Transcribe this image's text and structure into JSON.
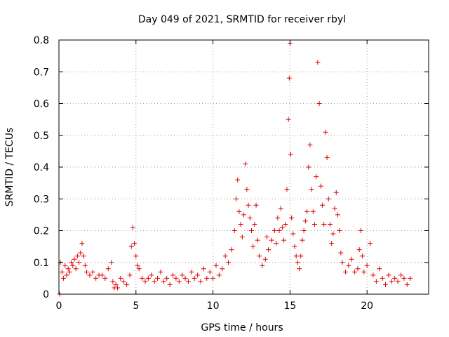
{
  "chart_data": {
    "type": "scatter",
    "title": "Day 049 of 2021, SRMTID for receiver rbyl",
    "xlabel": "GPS time / hours",
    "ylabel": "SRMTID / TECUs",
    "xlim": [
      0,
      24
    ],
    "ylim": [
      0,
      0.8
    ],
    "x_ticks": [
      0,
      5,
      10,
      15,
      20
    ],
    "x_tick_labels": [
      "0",
      "5",
      "10",
      "15",
      "20"
    ],
    "y_ticks": [
      0,
      0.1,
      0.2,
      0.3,
      0.4,
      0.5,
      0.6,
      0.7,
      0.8
    ],
    "y_tick_labels": [
      "0",
      "0.1",
      "0.2",
      "0.3",
      "0.4",
      "0.5",
      "0.6",
      "0.7",
      "0.8"
    ],
    "grid": true,
    "marker": "plus",
    "color": "#e00000",
    "series": [
      {
        "name": "SRMTID",
        "points": [
          [
            0.05,
            0.0
          ],
          [
            0.1,
            0.1
          ],
          [
            0.2,
            0.07
          ],
          [
            0.3,
            0.05
          ],
          [
            0.4,
            0.09
          ],
          [
            0.5,
            0.06
          ],
          [
            0.6,
            0.08
          ],
          [
            0.7,
            0.07
          ],
          [
            0.8,
            0.1
          ],
          [
            0.9,
            0.09
          ],
          [
            1.0,
            0.11
          ],
          [
            1.1,
            0.08
          ],
          [
            1.2,
            0.12
          ],
          [
            1.3,
            0.1
          ],
          [
            1.4,
            0.13
          ],
          [
            1.5,
            0.16
          ],
          [
            1.6,
            0.12
          ],
          [
            1.7,
            0.09
          ],
          [
            1.8,
            0.07
          ],
          [
            2.0,
            0.06
          ],
          [
            2.2,
            0.07
          ],
          [
            2.4,
            0.05
          ],
          [
            2.6,
            0.06
          ],
          [
            2.8,
            0.06
          ],
          [
            3.0,
            0.05
          ],
          [
            3.2,
            0.08
          ],
          [
            3.4,
            0.1
          ],
          [
            3.5,
            0.04
          ],
          [
            3.6,
            0.02
          ],
          [
            3.7,
            0.03
          ],
          [
            3.8,
            0.02
          ],
          [
            4.0,
            0.05
          ],
          [
            4.2,
            0.04
          ],
          [
            4.4,
            0.03
          ],
          [
            4.6,
            0.06
          ],
          [
            4.7,
            0.15
          ],
          [
            4.8,
            0.21
          ],
          [
            4.9,
            0.16
          ],
          [
            5.0,
            0.12
          ],
          [
            5.1,
            0.09
          ],
          [
            5.2,
            0.08
          ],
          [
            5.4,
            0.05
          ],
          [
            5.6,
            0.04
          ],
          [
            5.8,
            0.05
          ],
          [
            6.0,
            0.06
          ],
          [
            6.2,
            0.04
          ],
          [
            6.4,
            0.05
          ],
          [
            6.6,
            0.07
          ],
          [
            6.8,
            0.04
          ],
          [
            7.0,
            0.05
          ],
          [
            7.2,
            0.03
          ],
          [
            7.4,
            0.06
          ],
          [
            7.6,
            0.05
          ],
          [
            7.8,
            0.04
          ],
          [
            8.0,
            0.06
          ],
          [
            8.2,
            0.05
          ],
          [
            8.4,
            0.04
          ],
          [
            8.6,
            0.07
          ],
          [
            8.8,
            0.05
          ],
          [
            9.0,
            0.06
          ],
          [
            9.2,
            0.04
          ],
          [
            9.4,
            0.08
          ],
          [
            9.6,
            0.05
          ],
          [
            9.8,
            0.07
          ],
          [
            10.0,
            0.05
          ],
          [
            10.2,
            0.09
          ],
          [
            10.4,
            0.06
          ],
          [
            10.6,
            0.08
          ],
          [
            10.8,
            0.12
          ],
          [
            11.0,
            0.1
          ],
          [
            11.2,
            0.14
          ],
          [
            11.4,
            0.2
          ],
          [
            11.5,
            0.3
          ],
          [
            11.6,
            0.36
          ],
          [
            11.7,
            0.26
          ],
          [
            11.8,
            0.22
          ],
          [
            11.9,
            0.18
          ],
          [
            12.0,
            0.25
          ],
          [
            12.1,
            0.41
          ],
          [
            12.2,
            0.33
          ],
          [
            12.3,
            0.28
          ],
          [
            12.4,
            0.24
          ],
          [
            12.5,
            0.2
          ],
          [
            12.6,
            0.15
          ],
          [
            12.7,
            0.22
          ],
          [
            12.8,
            0.28
          ],
          [
            12.9,
            0.17
          ],
          [
            13.0,
            0.12
          ],
          [
            13.2,
            0.09
          ],
          [
            13.4,
            0.11
          ],
          [
            13.5,
            0.18
          ],
          [
            13.6,
            0.14
          ],
          [
            13.8,
            0.17
          ],
          [
            14.0,
            0.2
          ],
          [
            14.1,
            0.16
          ],
          [
            14.2,
            0.24
          ],
          [
            14.3,
            0.2
          ],
          [
            14.4,
            0.27
          ],
          [
            14.5,
            0.21
          ],
          [
            14.6,
            0.17
          ],
          [
            14.7,
            0.22
          ],
          [
            14.8,
            0.33
          ],
          [
            14.9,
            0.55
          ],
          [
            14.95,
            0.68
          ],
          [
            15.0,
            0.79
          ],
          [
            15.05,
            0.44
          ],
          [
            15.1,
            0.24
          ],
          [
            15.2,
            0.19
          ],
          [
            15.3,
            0.15
          ],
          [
            15.4,
            0.12
          ],
          [
            15.5,
            0.1
          ],
          [
            15.6,
            0.08
          ],
          [
            15.7,
            0.12
          ],
          [
            15.8,
            0.17
          ],
          [
            15.9,
            0.2
          ],
          [
            16.0,
            0.23
          ],
          [
            16.1,
            0.26
          ],
          [
            16.2,
            0.4
          ],
          [
            16.3,
            0.47
          ],
          [
            16.4,
            0.33
          ],
          [
            16.5,
            0.26
          ],
          [
            16.6,
            0.22
          ],
          [
            16.7,
            0.37
          ],
          [
            16.8,
            0.73
          ],
          [
            16.9,
            0.6
          ],
          [
            17.0,
            0.34
          ],
          [
            17.1,
            0.28
          ],
          [
            17.2,
            0.22
          ],
          [
            17.3,
            0.51
          ],
          [
            17.4,
            0.43
          ],
          [
            17.5,
            0.3
          ],
          [
            17.6,
            0.22
          ],
          [
            17.7,
            0.16
          ],
          [
            17.8,
            0.19
          ],
          [
            17.9,
            0.27
          ],
          [
            18.0,
            0.32
          ],
          [
            18.1,
            0.25
          ],
          [
            18.2,
            0.2
          ],
          [
            18.3,
            0.13
          ],
          [
            18.4,
            0.1
          ],
          [
            18.6,
            0.07
          ],
          [
            18.8,
            0.09
          ],
          [
            19.0,
            0.11
          ],
          [
            19.2,
            0.07
          ],
          [
            19.4,
            0.08
          ],
          [
            19.5,
            0.14
          ],
          [
            19.6,
            0.2
          ],
          [
            19.7,
            0.12
          ],
          [
            19.8,
            0.07
          ],
          [
            20.0,
            0.09
          ],
          [
            20.2,
            0.16
          ],
          [
            20.4,
            0.06
          ],
          [
            20.6,
            0.04
          ],
          [
            20.8,
            0.08
          ],
          [
            21.0,
            0.05
          ],
          [
            21.2,
            0.03
          ],
          [
            21.4,
            0.06
          ],
          [
            21.6,
            0.04
          ],
          [
            21.8,
            0.05
          ],
          [
            22.0,
            0.04
          ],
          [
            22.2,
            0.06
          ],
          [
            22.4,
            0.05
          ],
          [
            22.6,
            0.03
          ],
          [
            22.8,
            0.05
          ]
        ]
      }
    ]
  }
}
